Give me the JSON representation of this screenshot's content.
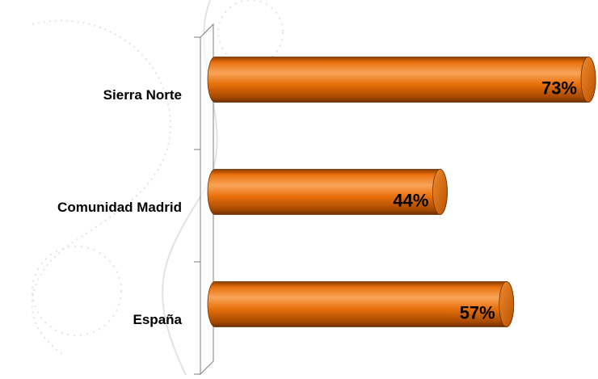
{
  "chart_data": {
    "type": "bar",
    "orientation": "horizontal",
    "categories": [
      "Sierra Norte",
      "Comunidad Madrid",
      "España"
    ],
    "values": [
      73,
      44,
      57
    ],
    "value_labels": [
      "73%",
      "44%",
      "57%"
    ],
    "color": "#e36c09"
  }
}
